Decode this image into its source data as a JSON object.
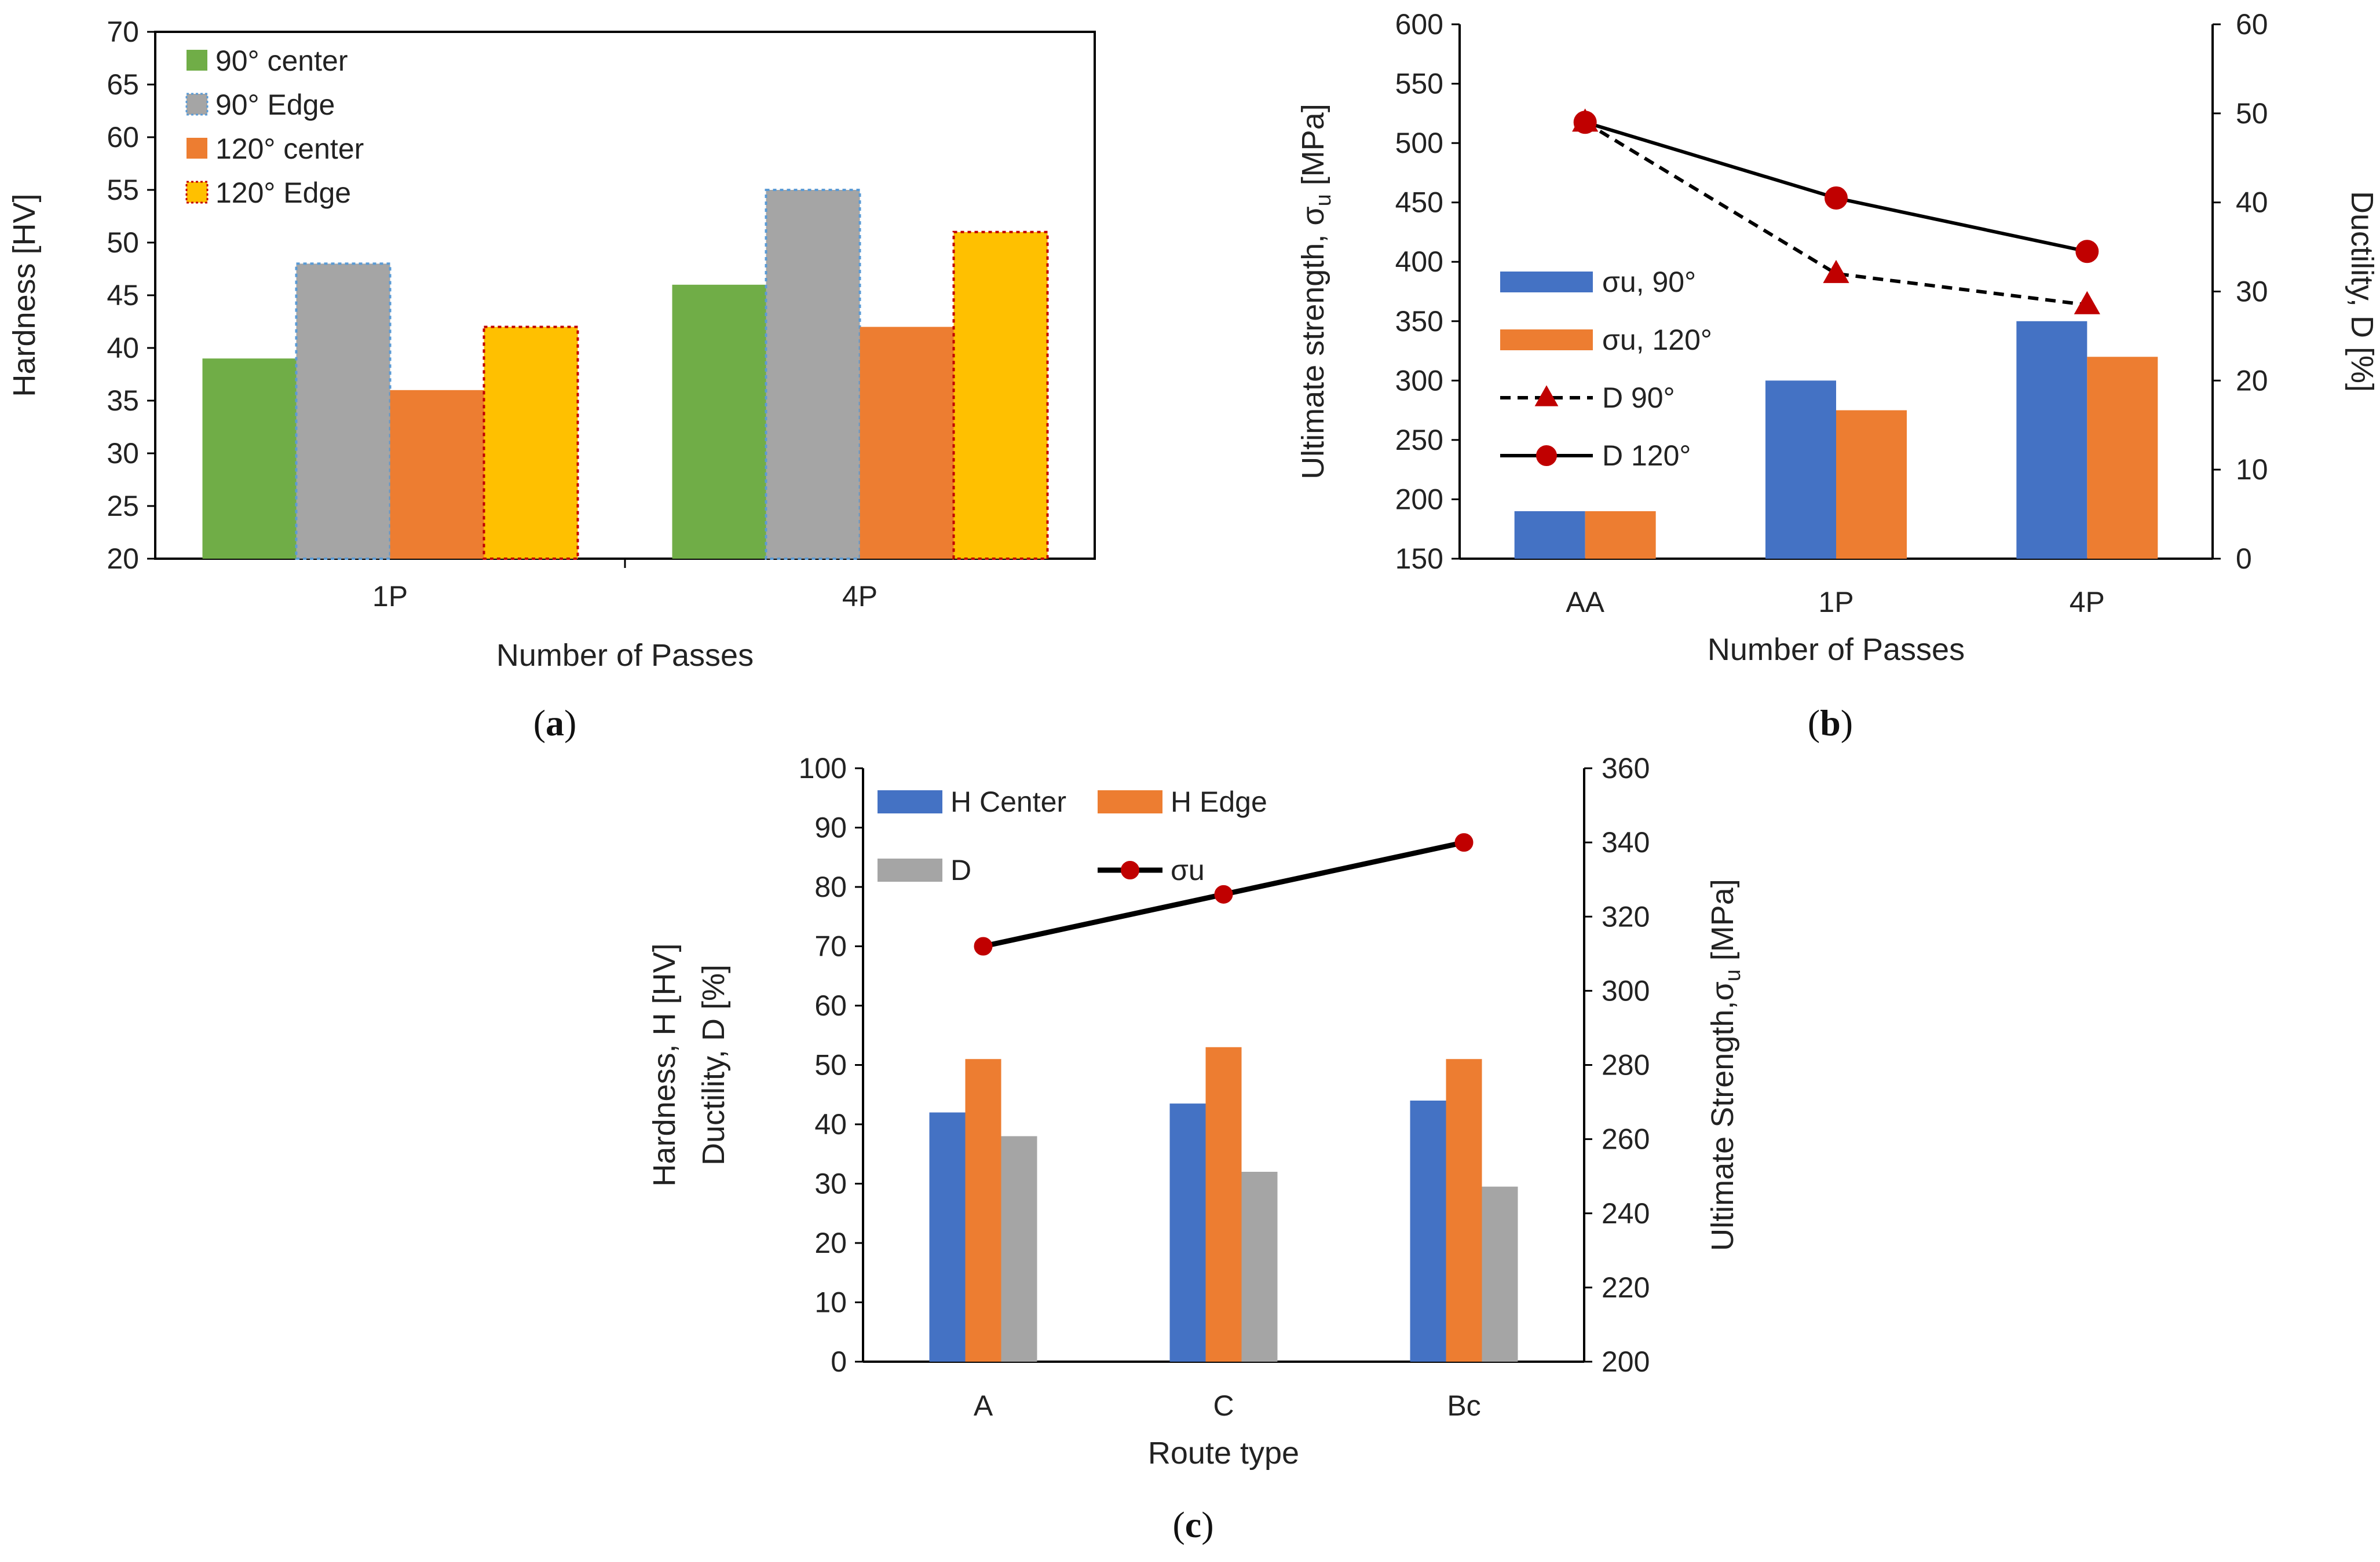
{
  "chart_data": [
    {
      "id": "a",
      "type": "bar",
      "panel_label": "a",
      "categories": [
        "1P",
        "4P"
      ],
      "series": [
        {
          "name": "90° center",
          "values": [
            39,
            46
          ],
          "color": "#70AD47",
          "border": "none"
        },
        {
          "name": "90° Edge",
          "values": [
            48,
            55
          ],
          "color": "#A5A5A5",
          "border": "#5B9BD5"
        },
        {
          "name": "120° center",
          "values": [
            36,
            42
          ],
          "color": "#ED7D31",
          "border": "none"
        },
        {
          "name": "120° Edge",
          "values": [
            42,
            51
          ],
          "color": "#FFC000",
          "border": "#C00000"
        }
      ],
      "xlabel": "Number of Passes",
      "ylabel": "Hardness [HV]",
      "ylim": [
        20,
        70
      ],
      "yticks": [
        20,
        25,
        30,
        35,
        40,
        45,
        50,
        55,
        60,
        65,
        70
      ],
      "legend": "top-left"
    },
    {
      "id": "b",
      "type": "bar+line",
      "panel_label": "b",
      "categories": [
        "AA",
        "1P",
        "4P"
      ],
      "bar_series": [
        {
          "name": "σu, 90°",
          "values": [
            190,
            300,
            350
          ],
          "color": "#4472C4"
        },
        {
          "name": "σu, 120°",
          "values": [
            190,
            275,
            320
          ],
          "color": "#ED7D31"
        }
      ],
      "line_series": [
        {
          "name": "D 90°",
          "values": [
            49,
            32,
            28.5
          ],
          "color": "#C00000",
          "marker": "triangle",
          "dash": true,
          "axis": "right"
        },
        {
          "name": "D 120°",
          "values": [
            49,
            40.5,
            34.5
          ],
          "color": "#C00000",
          "marker": "circle",
          "dash": false,
          "axis": "right"
        }
      ],
      "xlabel": "Number of Passes",
      "ylabel_left": "Ultimate strength, σ",
      "ylabel_left_sub": "u",
      "ylabel_left_unit": " [MPa]",
      "ylabel_right": "Ductility, D [%]",
      "ylim_left": [
        150,
        600
      ],
      "yticks_left": [
        150,
        200,
        250,
        300,
        350,
        400,
        450,
        500,
        550,
        600
      ],
      "ylim_right": [
        0,
        60
      ],
      "yticks_right": [
        0,
        10,
        20,
        30,
        40,
        50,
        60
      ],
      "legend": "middle-left"
    },
    {
      "id": "c",
      "type": "bar+line",
      "panel_label": "c",
      "categories": [
        "A",
        "C",
        "Bc"
      ],
      "bar_series": [
        {
          "name": "H Center",
          "values": [
            42,
            43.5,
            44
          ],
          "color": "#4472C4"
        },
        {
          "name": "H Edge",
          "values": [
            51,
            53,
            51
          ],
          "color": "#ED7D31"
        },
        {
          "name": "D",
          "values": [
            38,
            32,
            29.5
          ],
          "color": "#A5A5A5"
        }
      ],
      "line_series": [
        {
          "name": "σu",
          "values": [
            312,
            326,
            340
          ],
          "color": "#000000",
          "marker": "circle",
          "marker_color": "#C00000",
          "axis": "right"
        }
      ],
      "xlabel": "Route type",
      "ylabel_left_line1": "Hardness, H [HV]",
      "ylabel_left_line2": "Ductility, D [%]",
      "ylabel_right": "Ultimate Strength,σ",
      "ylabel_right_sub": "u",
      "ylabel_right_unit": " [MPa]",
      "ylim_left": [
        0,
        100
      ],
      "yticks_left": [
        0,
        10,
        20,
        30,
        40,
        50,
        60,
        70,
        80,
        90,
        100
      ],
      "ylim_right": [
        200,
        360
      ],
      "yticks_right": [
        200,
        220,
        240,
        260,
        280,
        300,
        320,
        340,
        360
      ],
      "legend": "top"
    }
  ]
}
